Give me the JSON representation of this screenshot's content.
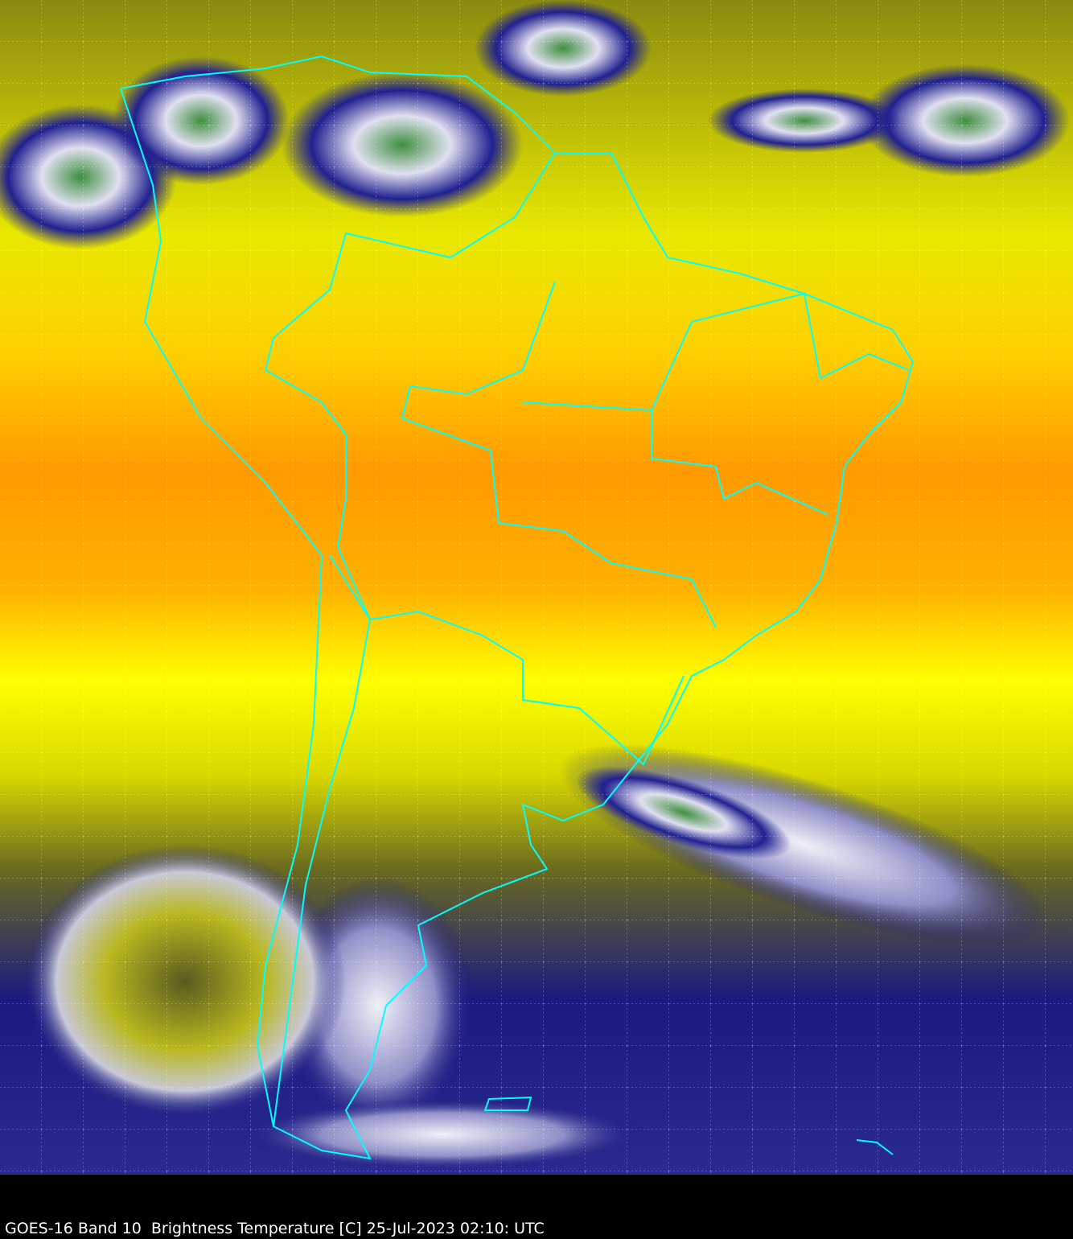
{
  "image": {
    "caption": "GOES-16 Band 10  Brightness Temperature [C] 25-Jul-2023 02:10: UTC",
    "colors": {
      "warm": "#ffff00",
      "warmer": "#ff8c00",
      "cold": "#10107a",
      "very_cold": "#ffffff",
      "coldest": "#3a8a3a",
      "boundaries": "#00ffff",
      "grid": "#ffffff",
      "background": "#000000"
    }
  }
}
